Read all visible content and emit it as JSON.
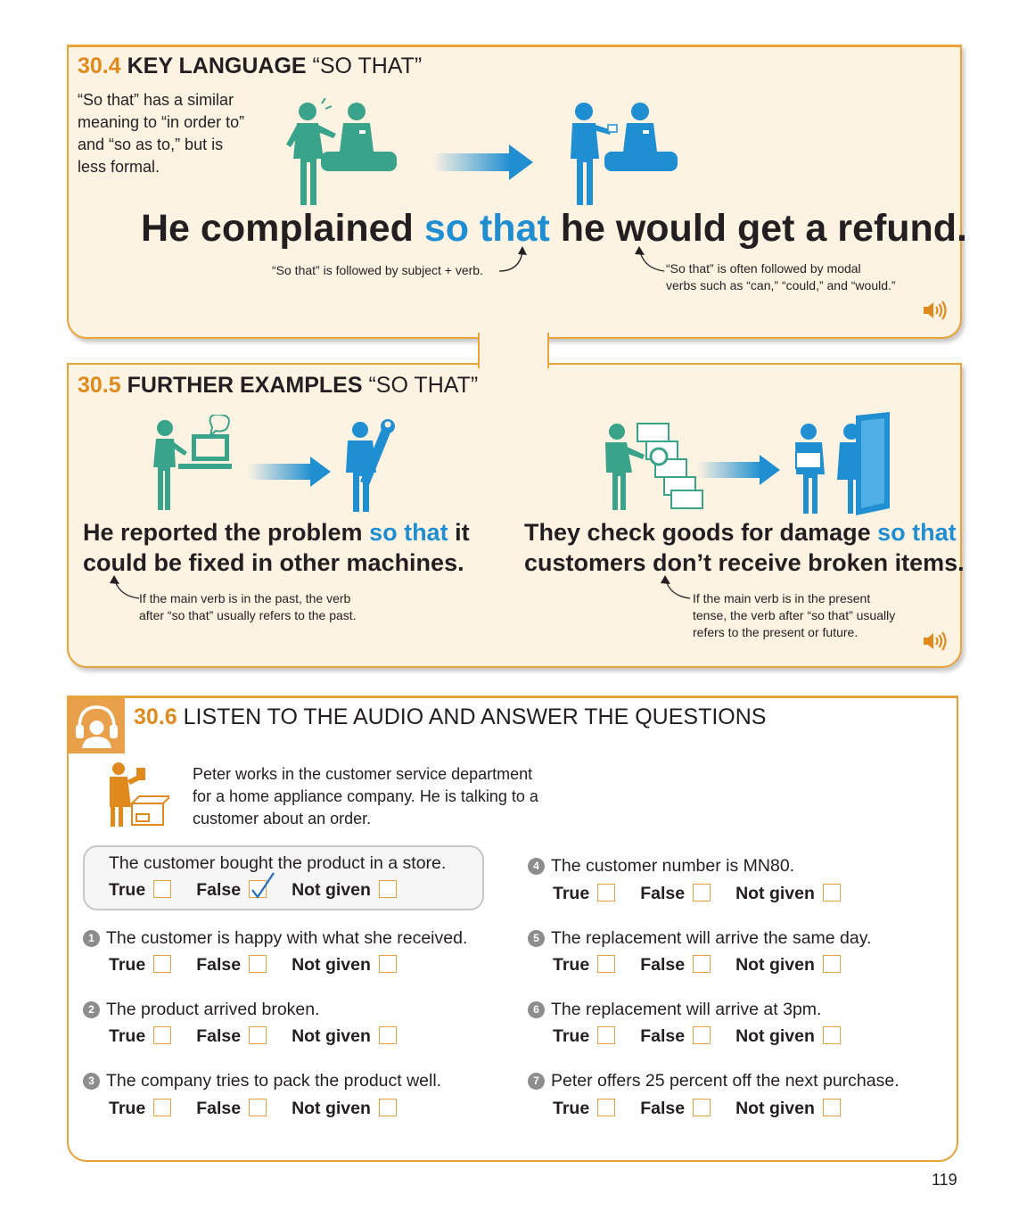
{
  "key_language": {
    "number": "30.4",
    "title_bold": "KEY LANGUAGE",
    "title_rest": "“SO THAT”",
    "intro": [
      "“So that” has a similar",
      "meaning to “in order to”",
      "and “so as to,” but is",
      "less formal."
    ],
    "sentence": {
      "before": "He complained",
      "highlight": "so that",
      "after": "he would get a refund."
    },
    "note_left": "“So that” is followed by subject + verb.",
    "note_right": [
      "“So that” is often followed by modal",
      "verbs such as “can,” “could,” and “would.”"
    ]
  },
  "further_examples": {
    "number": "30.5",
    "title_bold": "FURTHER EXAMPLES",
    "title_rest": "“SO THAT”",
    "left": {
      "line1_before": "He reported the problem",
      "line1_highlight": "so that",
      "line1_after": "it",
      "line2": "could be fixed in other machines.",
      "note": [
        "If the main verb is in the past, the verb",
        "after “so that” usually refers to the past."
      ]
    },
    "right": {
      "line1_before": "They check goods for damage",
      "line1_highlight": "so that",
      "line2": "customers don’t receive broken items.",
      "note": [
        "If the main verb is in the present",
        "tense, the verb after “so that” usually",
        "refers to the present or future."
      ]
    }
  },
  "listening": {
    "number": "30.6",
    "title": "LISTEN TO THE AUDIO AND ANSWER THE QUESTIONS",
    "intro": [
      "Peter works in the customer service department",
      "for a home appliance company. He is talking to a",
      "customer about an order."
    ],
    "options": [
      "True",
      "False",
      "Not given"
    ],
    "example": {
      "text": "The customer bought the product in a store.",
      "checked": "False"
    },
    "questions": [
      {
        "n": "1",
        "text": "The customer is happy with what she received."
      },
      {
        "n": "2",
        "text": "The product arrived broken."
      },
      {
        "n": "3",
        "text": "The company tries to pack the product well."
      },
      {
        "n": "4",
        "text": "The customer number is MN80."
      },
      {
        "n": "5",
        "text": "The replacement will arrive the same day."
      },
      {
        "n": "6",
        "text": "The replacement will arrive at 3pm."
      },
      {
        "n": "7",
        "text": "Peter offers 25 percent off the next purchase."
      }
    ]
  },
  "page_number": "119",
  "colors": {
    "orange": "#e08a1e",
    "blue": "#1f8fd1",
    "teal": "#3aa48a",
    "panel": "#fdf3e3"
  },
  "icons": [
    "speaker-icon",
    "headphones-icon",
    "arrow-icon"
  ]
}
